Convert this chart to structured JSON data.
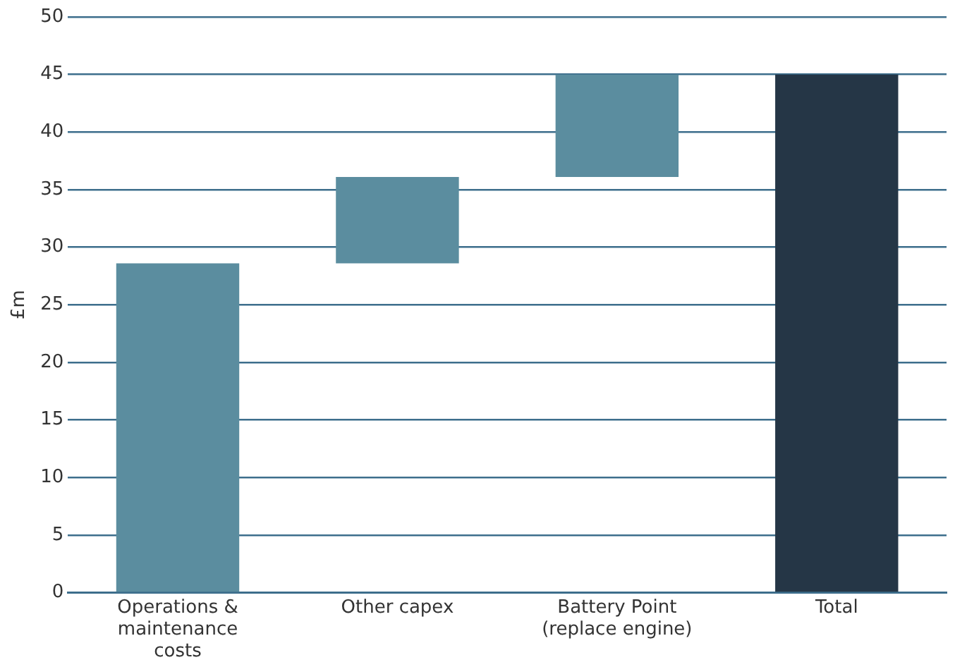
{
  "chart_data": {
    "type": "bar",
    "ylabel": "£m",
    "categories": [
      "Operations & maintenance costs",
      "Other capex",
      "Battery Point (replace engine)",
      "Total"
    ],
    "values": [
      28.6,
      7.5,
      8.9,
      45
    ],
    "base": [
      0,
      28.6,
      36.1,
      0
    ],
    "colors": [
      "#5b8d9f",
      "#5b8d9f",
      "#5b8d9f",
      "#253646"
    ],
    "ylim": [
      0,
      50
    ],
    "yticks": [
      0,
      5,
      10,
      15,
      20,
      25,
      30,
      35,
      40,
      45,
      50
    ],
    "grid": "y",
    "legend": false
  }
}
